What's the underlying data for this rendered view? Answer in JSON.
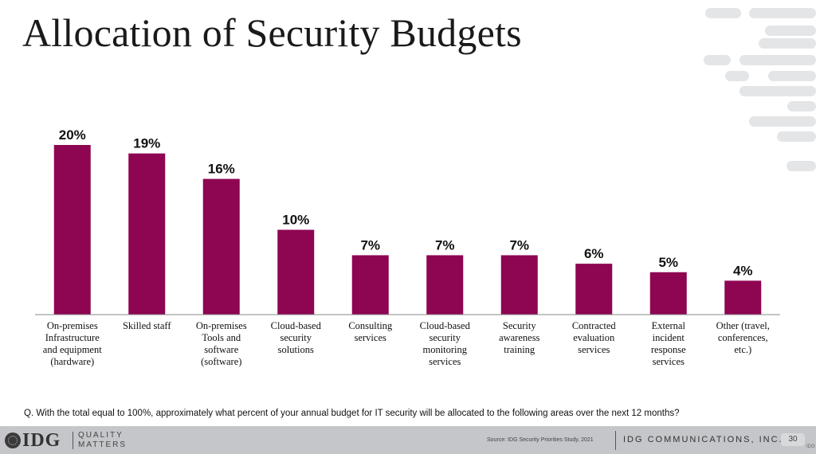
{
  "title": "Allocation of Security Budgets",
  "colors": {
    "bar": "#8e0552",
    "axis": "#888888",
    "footer_bg": "#c4c6c9"
  },
  "chart_data": {
    "type": "bar",
    "categories": [
      "On-premises Infrastructure and equipment (hardware)",
      "Skilled staff",
      "On-premises Tools and software (software)",
      "Cloud-based security solutions",
      "Consulting services",
      "Cloud-based security monitoring services",
      "Security awareness training",
      "Contracted evaluation services",
      "External incident response services",
      "Other (travel, conferences, etc.)"
    ],
    "category_lines": [
      [
        "On-premises",
        "Infrastructure",
        "and equipment",
        "(hardware)"
      ],
      [
        "Skilled staff"
      ],
      [
        "On-premises",
        "Tools and",
        "software",
        "(software)"
      ],
      [
        "Cloud-based",
        "security",
        "solutions"
      ],
      [
        "Consulting",
        "services"
      ],
      [
        "Cloud-based",
        "security",
        "monitoring",
        "services"
      ],
      [
        "Security",
        "awareness",
        "training"
      ],
      [
        "Contracted",
        "evaluation",
        "services"
      ],
      [
        "External",
        "incident",
        "response",
        "services"
      ],
      [
        "Other (travel,",
        "conferences,",
        "etc.)"
      ]
    ],
    "values": [
      20,
      19,
      16,
      10,
      7,
      7,
      7,
      6,
      5,
      4
    ],
    "value_labels": [
      "20%",
      "19%",
      "16%",
      "10%",
      "7%",
      "7%",
      "7%",
      "6%",
      "5%",
      "4%"
    ],
    "unit": "%",
    "ylim": [
      0,
      20
    ],
    "grid": false,
    "legend": "none"
  },
  "question": "Q. With the total equal to 100%, approximately what percent of your annual budget for IT security will be allocated to the following areas over the next 12 months?",
  "footer": {
    "logo": "IDG",
    "tagline_line1": "QUALITY",
    "tagline_line2": "MATTERS",
    "source": "Source: IDG Security Priorities Study, 2021",
    "company": "IDG COMMUNICATIONS, INC.",
    "page_number": "30",
    "corner_mark": "IDG"
  }
}
